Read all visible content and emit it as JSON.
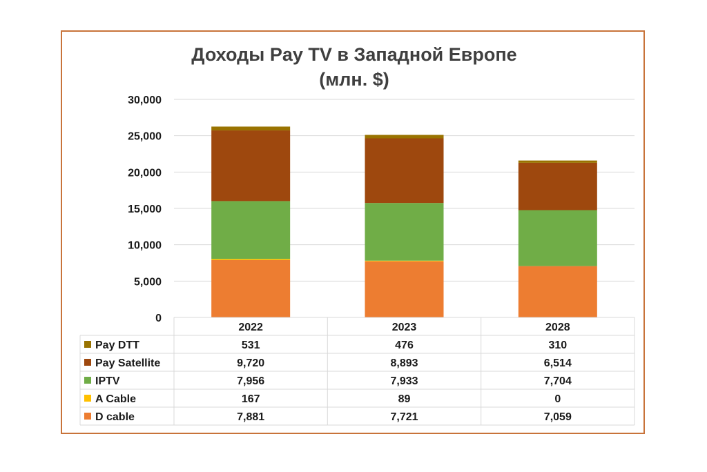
{
  "chart_data": {
    "type": "bar",
    "stacked": true,
    "title": "Доходы Pay TV в Западной Европе",
    "subtitle": "(млн. $)",
    "categories": [
      "2022",
      "2023",
      "2028"
    ],
    "ylim": [
      0,
      30000
    ],
    "yticks": [
      "0",
      "5,000",
      "10,000",
      "15,000",
      "20,000",
      "25,000",
      "30,000"
    ],
    "ytick_values": [
      0,
      5000,
      10000,
      15000,
      20000,
      25000,
      30000
    ],
    "grid": true,
    "legend": "data-table-below",
    "series": [
      {
        "name": "D cable",
        "color": "#ed7d31",
        "values": [
          7881,
          7721,
          7059
        ],
        "labels": [
          "7,881",
          "7,721",
          "7,059"
        ]
      },
      {
        "name": "A Cable",
        "color": "#ffc000",
        "values": [
          167,
          89,
          0
        ],
        "labels": [
          "167",
          "89",
          "0"
        ]
      },
      {
        "name": "IPTV",
        "color": "#70ad47",
        "values": [
          7956,
          7933,
          7704
        ],
        "labels": [
          "7,956",
          "7,933",
          "7,704"
        ]
      },
      {
        "name": "Pay Satellite",
        "color": "#9e480e",
        "values": [
          9720,
          8893,
          6514
        ],
        "labels": [
          "9,720",
          "8,893",
          "6,514"
        ]
      },
      {
        "name": "Pay DTT",
        "color": "#997300",
        "values": [
          531,
          476,
          310
        ],
        "labels": [
          "531",
          "476",
          "310"
        ]
      }
    ],
    "table_order": [
      "Pay DTT",
      "Pay Satellite",
      "IPTV",
      "A Cable",
      "D cable"
    ]
  },
  "colors": {
    "frame": "#c8733a",
    "grid": "#d9d9d9",
    "title": "#3f3f3f"
  }
}
